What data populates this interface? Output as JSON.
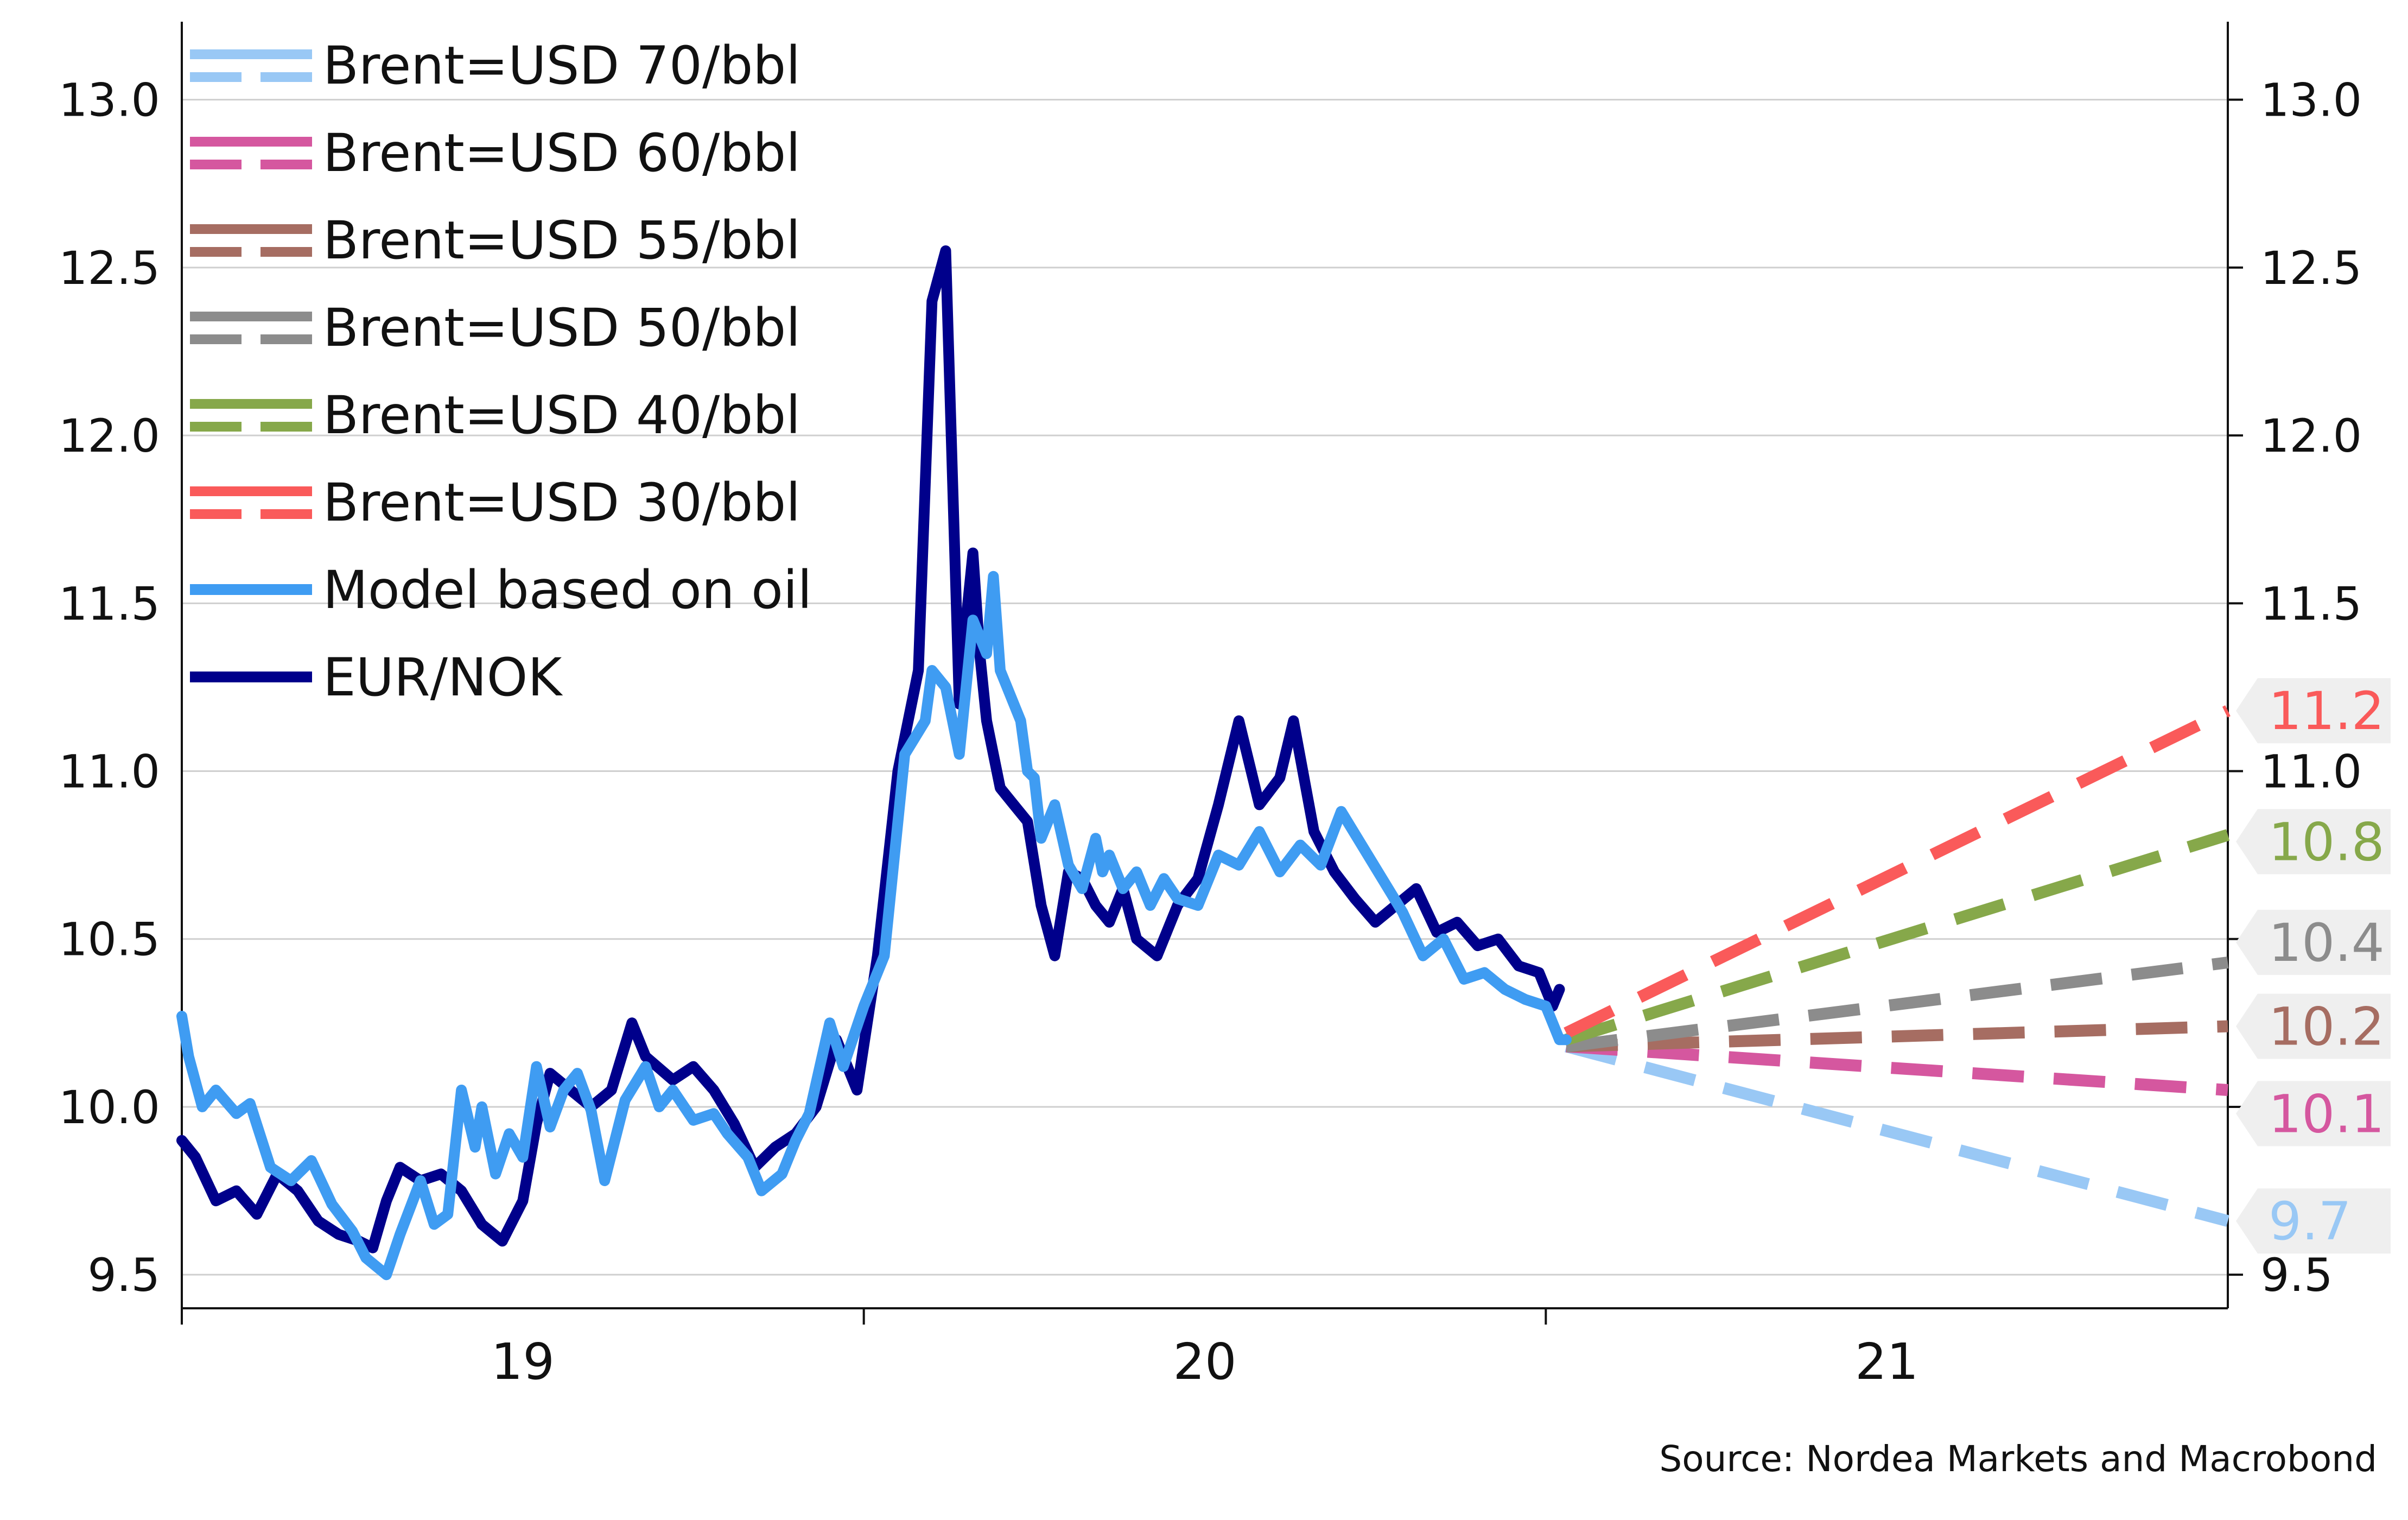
{
  "chart_data": {
    "type": "line",
    "title": "",
    "source": "Source: Nordea Markets and Macrobond",
    "xlabel": "",
    "ylabel": "",
    "ylim": [
      9.4,
      13.2
    ],
    "y_ticks_left": [
      "13.0",
      "12.5",
      "12.0",
      "11.5",
      "11.0",
      "10.5",
      "10.0",
      "9.5"
    ],
    "y_ticks_right": [
      "13.0",
      "12.5",
      "12.0",
      "11.5",
      "11.0",
      "10.5",
      "10.0",
      "9.5"
    ],
    "x_tick_labels": [
      {
        "label": "19",
        "x": 2019.5
      },
      {
        "label": "20",
        "x": 2020.5
      },
      {
        "label": "21",
        "x": 2021.5
      }
    ],
    "x_range": [
      2019.0,
      2022.0
    ],
    "legend_position": "top-left",
    "grid": "horizontal",
    "series": [
      {
        "name": "Brent=USD 70/bbl",
        "color": "#99c8f5",
        "style": "dashed",
        "x": [
          2021.03,
          2022.0
        ],
        "values": [
          10.18,
          9.66
        ]
      },
      {
        "name": "Brent=USD 60/bbl",
        "color": "#d5579f",
        "style": "dashed",
        "x": [
          2021.03,
          2022.0
        ],
        "values": [
          10.18,
          10.05
        ]
      },
      {
        "name": "Brent=USD 55/bbl",
        "color": "#a66d62",
        "style": "dashed",
        "x": [
          2021.03,
          2022.0
        ],
        "values": [
          10.18,
          10.24
        ]
      },
      {
        "name": "Brent=USD 50/bbl",
        "color": "#8c8c8c",
        "style": "dashed",
        "x": [
          2021.03,
          2022.0
        ],
        "values": [
          10.18,
          10.43
        ]
      },
      {
        "name": "Brent=USD 40/bbl",
        "color": "#86a84a",
        "style": "dashed",
        "x": [
          2021.03,
          2022.0
        ],
        "values": [
          10.2,
          10.81
        ]
      },
      {
        "name": "Brent=USD 30/bbl",
        "color": "#fa5a5a",
        "style": "dashed",
        "x": [
          2021.03,
          2022.0
        ],
        "values": [
          10.22,
          11.18
        ]
      },
      {
        "name": "Model based on oil",
        "color": "#3f9cf2",
        "style": "solid",
        "x": [
          2019.0,
          2019.01,
          2019.03,
          2019.05,
          2019.08,
          2019.1,
          2019.13,
          2019.16,
          2019.19,
          2019.22,
          2019.25,
          2019.27,
          2019.3,
          2019.32,
          2019.35,
          2019.37,
          2019.39,
          2019.41,
          2019.43,
          2019.44,
          2019.46,
          2019.48,
          2019.5,
          2019.52,
          2019.54,
          2019.56,
          2019.58,
          2019.6,
          2019.62,
          2019.65,
          2019.68,
          2019.7,
          2019.72,
          2019.75,
          2019.78,
          2019.8,
          2019.83,
          2019.85,
          2019.88,
          2019.9,
          2019.92,
          2019.95,
          2019.97,
          2020.0,
          2020.03,
          2020.06,
          2020.09,
          2020.1,
          2020.12,
          2020.14,
          2020.16,
          2020.18,
          2020.19,
          2020.2,
          2020.21,
          2020.22,
          2020.23,
          2020.24,
          2020.25,
          2020.26,
          2020.28,
          2020.3,
          2020.32,
          2020.34,
          2020.35,
          2020.36,
          2020.38,
          2020.4,
          2020.42,
          2020.44,
          2020.46,
          2020.49,
          2020.52,
          2020.55,
          2020.58,
          2020.61,
          2020.64,
          2020.67,
          2020.7,
          2020.73,
          2020.76,
          2020.79,
          2020.82,
          2020.85,
          2020.88,
          2020.91,
          2020.94,
          2020.97,
          2021.0,
          2021.02,
          2021.03
        ],
        "values": [
          10.27,
          10.15,
          10.0,
          10.05,
          9.98,
          10.01,
          9.82,
          9.78,
          9.84,
          9.71,
          9.63,
          9.55,
          9.5,
          9.62,
          9.78,
          9.65,
          9.68,
          10.05,
          9.88,
          10.0,
          9.8,
          9.92,
          9.85,
          10.12,
          9.94,
          10.05,
          10.1,
          9.99,
          9.78,
          10.02,
          10.12,
          10.0,
          10.05,
          9.96,
          9.98,
          9.92,
          9.85,
          9.75,
          9.8,
          9.9,
          9.98,
          10.25,
          10.12,
          10.3,
          10.45,
          11.05,
          11.15,
          11.3,
          11.25,
          11.05,
          11.45,
          11.35,
          11.58,
          11.3,
          11.25,
          11.2,
          11.15,
          11.0,
          10.98,
          10.8,
          10.9,
          10.72,
          10.65,
          10.8,
          10.7,
          10.75,
          10.65,
          10.7,
          10.6,
          10.68,
          10.62,
          10.6,
          10.75,
          10.72,
          10.82,
          10.7,
          10.78,
          10.72,
          10.88,
          10.78,
          10.68,
          10.58,
          10.45,
          10.5,
          10.38,
          10.4,
          10.35,
          10.32,
          10.3,
          10.2,
          10.2
        ]
      },
      {
        "name": "EUR/NOK",
        "color": "#00008b",
        "style": "solid",
        "x": [
          2019.0,
          2019.02,
          2019.05,
          2019.08,
          2019.11,
          2019.14,
          2019.17,
          2019.2,
          2019.23,
          2019.26,
          2019.28,
          2019.3,
          2019.32,
          2019.35,
          2019.38,
          2019.41,
          2019.44,
          2019.47,
          2019.5,
          2019.52,
          2019.54,
          2019.57,
          2019.6,
          2019.63,
          2019.66,
          2019.68,
          2019.72,
          2019.75,
          2019.78,
          2019.81,
          2019.84,
          2019.87,
          2019.9,
          2019.93,
          2019.96,
          2019.99,
          2020.02,
          2020.05,
          2020.08,
          2020.1,
          2020.12,
          2020.14,
          2020.15,
          2020.16,
          2020.17,
          2020.18,
          2020.2,
          2020.22,
          2020.24,
          2020.26,
          2020.28,
          2020.3,
          2020.32,
          2020.34,
          2020.36,
          2020.38,
          2020.4,
          2020.43,
          2020.46,
          2020.49,
          2020.52,
          2020.55,
          2020.58,
          2020.61,
          2020.63,
          2020.66,
          2020.69,
          2020.72,
          2020.75,
          2020.78,
          2020.81,
          2020.84,
          2020.87,
          2020.9,
          2020.93,
          2020.96,
          2020.99,
          2021.01,
          2021.02
        ],
        "values": [
          9.9,
          9.85,
          9.72,
          9.75,
          9.68,
          9.8,
          9.75,
          9.66,
          9.62,
          9.6,
          9.58,
          9.72,
          9.82,
          9.78,
          9.8,
          9.75,
          9.65,
          9.6,
          9.72,
          9.95,
          10.1,
          10.05,
          10.0,
          10.05,
          10.25,
          10.15,
          10.08,
          10.12,
          10.05,
          9.95,
          9.82,
          9.88,
          9.92,
          10.0,
          10.2,
          10.05,
          10.45,
          11.0,
          11.3,
          12.4,
          12.55,
          11.2,
          11.45,
          11.65,
          11.35,
          11.15,
          10.95,
          10.9,
          10.85,
          10.6,
          10.45,
          10.7,
          10.68,
          10.6,
          10.55,
          10.65,
          10.5,
          10.45,
          10.6,
          10.68,
          10.9,
          11.15,
          10.9,
          10.98,
          11.15,
          10.82,
          10.7,
          10.62,
          10.55,
          10.6,
          10.65,
          10.52,
          10.55,
          10.48,
          10.5,
          10.42,
          10.4,
          10.3,
          10.35
        ]
      }
    ],
    "end_labels": [
      {
        "text": "11.2",
        "y": 11.18,
        "color": "#fa5a5a"
      },
      {
        "text": "10.8",
        "y": 10.79,
        "color": "#86a84a"
      },
      {
        "text": "10.4",
        "y": 10.49,
        "color": "#8c8c8c"
      },
      {
        "text": "10.2",
        "y": 10.24,
        "color": "#a66d62"
      },
      {
        "text": "10.1",
        "y": 9.98,
        "color": "#d5579f"
      },
      {
        "text": "9.7",
        "y": 9.66,
        "color": "#99c8f5"
      }
    ],
    "legend_entries": [
      {
        "label": "Brent=USD 70/bbl",
        "color": "#99c8f5",
        "type": "double"
      },
      {
        "label": "Brent=USD 60/bbl",
        "color": "#d5579f",
        "type": "double"
      },
      {
        "label": "Brent=USD 55/bbl",
        "color": "#a66d62",
        "type": "double"
      },
      {
        "label": "Brent=USD 50/bbl",
        "color": "#8c8c8c",
        "type": "double"
      },
      {
        "label": "Brent=USD 40/bbl",
        "color": "#86a84a",
        "type": "double"
      },
      {
        "label": "Brent=USD 30/bbl",
        "color": "#fa5a5a",
        "type": "double"
      },
      {
        "label": "Model based on oil",
        "color": "#3f9cf2",
        "type": "solid"
      },
      {
        "label": "EUR/NOK",
        "color": "#00008b",
        "type": "solid"
      }
    ]
  }
}
